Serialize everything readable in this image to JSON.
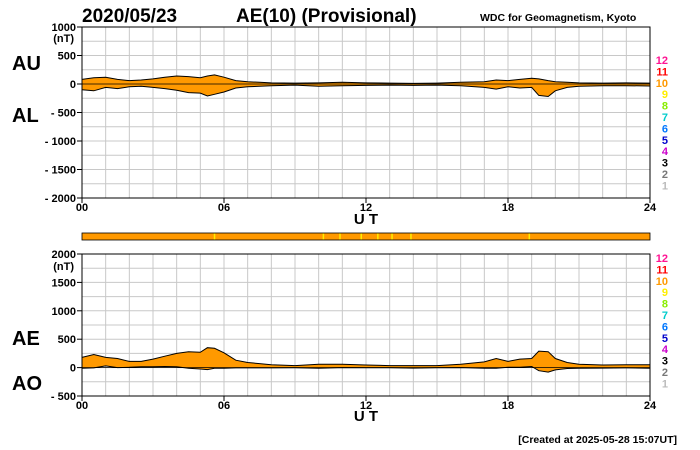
{
  "header": {
    "date": "2020/05/23",
    "title": "AE(10) (Provisional)",
    "source": "WDC for Geomagnetism, Kyoto"
  },
  "footer": {
    "created": "[Created at 2025-05-28 15:07UT]"
  },
  "station_count_scale": {
    "labels": [
      "12",
      "11",
      "10",
      "9",
      "8",
      "7",
      "6",
      "5",
      "4",
      "3",
      "2",
      "1"
    ],
    "colors": [
      "#ff1493",
      "#ff0000",
      "#ff9900",
      "#ffee00",
      "#88ee00",
      "#00cccc",
      "#0077ff",
      "#0000cc",
      "#cc00cc",
      "#000000",
      "#777777",
      "#bbbbbb"
    ]
  },
  "colors": {
    "fill": "#ff9900",
    "line": "#000000",
    "grid": "#c8c8c8",
    "bar_tick": "#ffee00"
  },
  "chart_data": [
    {
      "type": "area",
      "panel": "top",
      "series_labels": [
        "AU",
        "AL"
      ],
      "y_unit_label": "(nT)",
      "xlabel": "U T",
      "ylim": [
        -2000,
        1000
      ],
      "xlim": [
        0,
        24
      ],
      "yticks": [
        1000,
        500,
        0,
        -500,
        -1000,
        -1500,
        -2000
      ],
      "ytick_labels": [
        "1000",
        "500",
        "0",
        "- 500",
        "- 1000",
        "- 1500",
        "- 2000"
      ],
      "xticks": [
        0,
        6,
        12,
        18,
        24
      ],
      "xtick_labels": [
        "00",
        "06",
        "12",
        "18",
        "24"
      ],
      "x_hours": [
        0,
        0.5,
        1,
        1.5,
        2,
        2.5,
        3,
        3.5,
        4,
        4.5,
        5,
        5.3,
        5.6,
        6,
        6.5,
        7,
        7.5,
        8,
        9,
        10,
        11,
        12,
        13,
        14,
        15,
        16,
        17,
        17.5,
        18,
        18.5,
        19,
        19.3,
        19.7,
        20,
        20.5,
        21,
        22,
        23,
        24
      ],
      "AU": [
        80,
        110,
        120,
        80,
        60,
        70,
        90,
        120,
        140,
        130,
        110,
        140,
        160,
        120,
        60,
        40,
        30,
        20,
        15,
        20,
        30,
        20,
        15,
        10,
        15,
        30,
        40,
        70,
        60,
        80,
        100,
        90,
        60,
        40,
        30,
        20,
        15,
        20,
        15
      ],
      "AL": [
        -100,
        -120,
        -60,
        -80,
        -50,
        -40,
        -60,
        -80,
        -110,
        -150,
        -160,
        -210,
        -180,
        -140,
        -70,
        -50,
        -40,
        -30,
        -20,
        -40,
        -30,
        -25,
        -20,
        -25,
        -20,
        -30,
        -60,
        -90,
        -50,
        -70,
        -60,
        -200,
        -220,
        -120,
        -60,
        -40,
        -30,
        -30,
        -35
      ]
    },
    {
      "type": "area",
      "panel": "bottom",
      "series_labels": [
        "AE",
        "AO"
      ],
      "y_unit_label": "(nT)",
      "xlabel": "U T",
      "ylim": [
        -500,
        2000
      ],
      "xlim": [
        0,
        24
      ],
      "yticks": [
        2000,
        1500,
        1000,
        500,
        0,
        -500
      ],
      "ytick_labels": [
        "2000",
        "1500",
        "1000",
        "500",
        "0",
        "- 500"
      ],
      "xticks": [
        0,
        6,
        12,
        18,
        24
      ],
      "xtick_labels": [
        "00",
        "06",
        "12",
        "18",
        "24"
      ],
      "x_hours": [
        0,
        0.5,
        1,
        1.5,
        2,
        2.5,
        3,
        3.5,
        4,
        4.5,
        5,
        5.3,
        5.6,
        6,
        6.5,
        7,
        7.5,
        8,
        9,
        10,
        11,
        12,
        13,
        14,
        15,
        16,
        17,
        17.5,
        18,
        18.5,
        19,
        19.3,
        19.7,
        20,
        20.5,
        21,
        22,
        23,
        24
      ],
      "AE": [
        180,
        230,
        180,
        160,
        110,
        110,
        150,
        200,
        250,
        280,
        270,
        350,
        340,
        260,
        130,
        90,
        70,
        50,
        35,
        60,
        60,
        45,
        35,
        35,
        35,
        60,
        100,
        160,
        110,
        150,
        160,
        290,
        280,
        160,
        90,
        60,
        45,
        50,
        50
      ],
      "AO": [
        -10,
        -5,
        30,
        0,
        5,
        15,
        15,
        20,
        15,
        -10,
        -25,
        -35,
        -10,
        -10,
        -5,
        -5,
        -5,
        -5,
        -3,
        -10,
        0,
        -3,
        -3,
        -8,
        -3,
        0,
        -10,
        -10,
        5,
        5,
        20,
        -55,
        -80,
        -40,
        -15,
        -10,
        -8,
        -5,
        -10
      ]
    }
  ],
  "station_bar": {
    "tick_hours": [
      5.6,
      10.2,
      10.9,
      11.8,
      12.5,
      13.1,
      13.9,
      18.9
    ]
  }
}
